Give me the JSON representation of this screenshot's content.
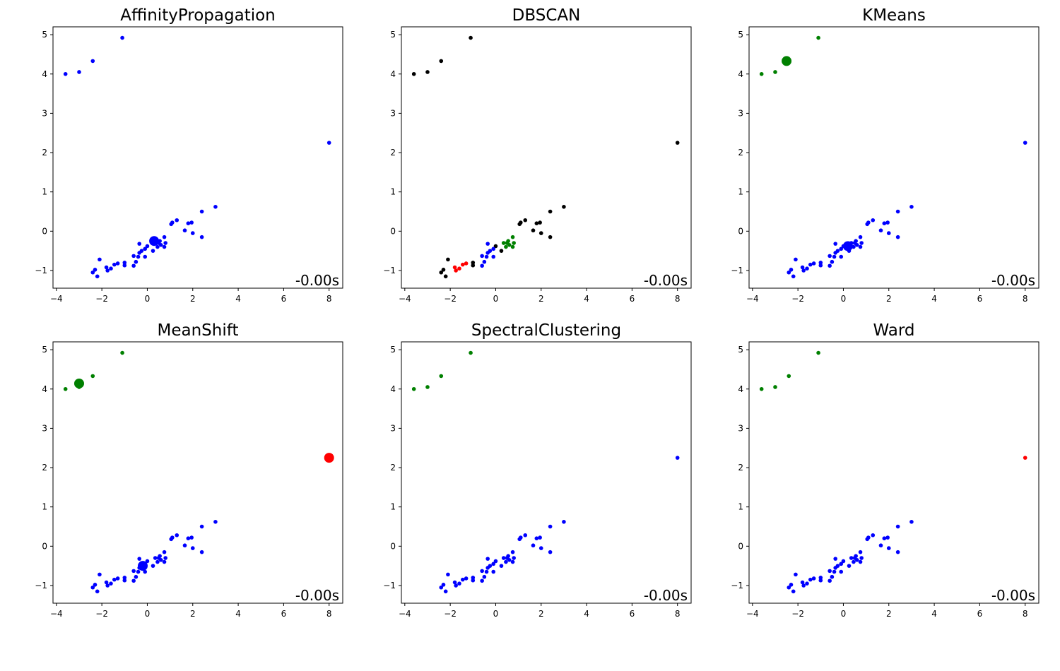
{
  "colors": {
    "blue": "#0000ff",
    "green": "#008000",
    "red": "#ff0000",
    "black": "#000000"
  },
  "base_points": [
    [
      -3.6,
      4.0
    ],
    [
      -3.0,
      4.05
    ],
    [
      -2.4,
      4.33
    ],
    [
      -1.1,
      4.92
    ],
    [
      8.0,
      2.25
    ],
    [
      3.0,
      0.62
    ],
    [
      2.4,
      0.5
    ],
    [
      1.3,
      0.28
    ],
    [
      1.05,
      0.18
    ],
    [
      1.1,
      0.22
    ],
    [
      1.8,
      0.2
    ],
    [
      1.95,
      0.22
    ],
    [
      1.65,
      0.02
    ],
    [
      2.0,
      -0.05
    ],
    [
      2.4,
      -0.15
    ],
    [
      0.75,
      -0.15
    ],
    [
      0.55,
      -0.25
    ],
    [
      0.5,
      -0.3
    ],
    [
      0.35,
      -0.3
    ],
    [
      0.6,
      -0.35
    ],
    [
      0.8,
      -0.3
    ],
    [
      0.75,
      -0.4
    ],
    [
      0.45,
      -0.4
    ],
    [
      0.25,
      -0.5
    ],
    [
      0.0,
      -0.38
    ],
    [
      -0.1,
      -0.45
    ],
    [
      -0.35,
      -0.32
    ],
    [
      -0.25,
      -0.5
    ],
    [
      -0.35,
      -0.55
    ],
    [
      -0.1,
      -0.65
    ],
    [
      -0.4,
      -0.65
    ],
    [
      -0.6,
      -0.63
    ],
    [
      -0.5,
      -0.78
    ],
    [
      -0.6,
      -0.88
    ],
    [
      -1.0,
      -0.8
    ],
    [
      -1.0,
      -0.87
    ],
    [
      -1.3,
      -0.82
    ],
    [
      -1.45,
      -0.85
    ],
    [
      -1.6,
      -0.95
    ],
    [
      -1.75,
      -1.0
    ],
    [
      -1.8,
      -0.92
    ],
    [
      -2.1,
      -0.72
    ],
    [
      -2.4,
      -1.05
    ],
    [
      -2.3,
      -0.98
    ],
    [
      -2.2,
      -1.15
    ]
  ],
  "chart_data": [
    {
      "type": "scatter",
      "title": "AffinityPropagation",
      "annotation": "-0.00s",
      "xticks": [
        -4,
        -2,
        0,
        2,
        4,
        6,
        8
      ],
      "yticks": [
        -1,
        0,
        1,
        2,
        3,
        4,
        5
      ],
      "xlim": [
        -4.15,
        8.6
      ],
      "ylim": [
        -1.45,
        5.2
      ],
      "labels": [
        "blue",
        "blue",
        "blue",
        "blue",
        "blue",
        "blue",
        "blue",
        "blue",
        "blue",
        "blue",
        "blue",
        "blue",
        "blue",
        "blue",
        "blue",
        "blue",
        "blue",
        "blue",
        "blue",
        "blue",
        "blue",
        "blue",
        "blue",
        "blue",
        "blue",
        "blue",
        "blue",
        "blue",
        "blue",
        "blue",
        "blue",
        "blue",
        "blue",
        "blue",
        "blue",
        "blue",
        "blue",
        "blue",
        "blue",
        "blue",
        "blue",
        "blue",
        "blue",
        "blue",
        "blue"
      ],
      "centers": [
        {
          "x": 0.3,
          "y": -0.25,
          "color": "blue"
        }
      ]
    },
    {
      "type": "scatter",
      "title": "DBSCAN",
      "annotation": "-0.00s",
      "xticks": [
        -4,
        -2,
        0,
        2,
        4,
        6,
        8
      ],
      "yticks": [
        -1,
        0,
        1,
        2,
        3,
        4,
        5
      ],
      "xlim": [
        -4.15,
        8.6
      ],
      "ylim": [
        -1.45,
        5.2
      ],
      "labels": [
        "black",
        "black",
        "black",
        "black",
        "black",
        "black",
        "black",
        "black",
        "black",
        "black",
        "black",
        "black",
        "black",
        "black",
        "black",
        "green",
        "green",
        "green",
        "green",
        "green",
        "green",
        "green",
        "green",
        "black",
        "black",
        "blue",
        "blue",
        "blue",
        "blue",
        "blue",
        "blue",
        "blue",
        "blue",
        "blue",
        "black",
        "black",
        "red",
        "red",
        "red",
        "red",
        "red",
        "black",
        "black",
        "black",
        "black"
      ],
      "centers": []
    },
    {
      "type": "scatter",
      "title": "KMeans",
      "annotation": "-0.00s",
      "xticks": [
        -4,
        -2,
        0,
        2,
        4,
        6,
        8
      ],
      "yticks": [
        -1,
        0,
        1,
        2,
        3,
        4,
        5
      ],
      "xlim": [
        -4.15,
        8.6
      ],
      "ylim": [
        -1.45,
        5.2
      ],
      "labels": [
        "green",
        "green",
        "green",
        "green",
        "blue",
        "blue",
        "blue",
        "blue",
        "blue",
        "blue",
        "blue",
        "blue",
        "blue",
        "blue",
        "blue",
        "blue",
        "blue",
        "blue",
        "blue",
        "blue",
        "blue",
        "blue",
        "blue",
        "blue",
        "blue",
        "blue",
        "blue",
        "blue",
        "blue",
        "blue",
        "blue",
        "blue",
        "blue",
        "blue",
        "blue",
        "blue",
        "blue",
        "blue",
        "blue",
        "blue",
        "blue",
        "blue",
        "blue",
        "blue",
        "blue"
      ],
      "centers": [
        {
          "x": -2.5,
          "y": 4.33,
          "color": "green"
        },
        {
          "x": 0.2,
          "y": -0.38,
          "color": "blue"
        }
      ]
    },
    {
      "type": "scatter",
      "title": "MeanShift",
      "annotation": "-0.00s",
      "xticks": [
        -4,
        -2,
        0,
        2,
        4,
        6,
        8
      ],
      "yticks": [
        -1,
        0,
        1,
        2,
        3,
        4,
        5
      ],
      "xlim": [
        -4.15,
        8.6
      ],
      "ylim": [
        -1.45,
        5.2
      ],
      "labels": [
        "green",
        "green",
        "green",
        "green",
        "red",
        "blue",
        "blue",
        "blue",
        "blue",
        "blue",
        "blue",
        "blue",
        "blue",
        "blue",
        "blue",
        "blue",
        "blue",
        "blue",
        "blue",
        "blue",
        "blue",
        "blue",
        "blue",
        "blue",
        "blue",
        "blue",
        "blue",
        "blue",
        "blue",
        "blue",
        "blue",
        "blue",
        "blue",
        "blue",
        "blue",
        "blue",
        "blue",
        "blue",
        "blue",
        "blue",
        "blue",
        "blue",
        "blue",
        "blue",
        "blue"
      ],
      "centers": [
        {
          "x": -3.0,
          "y": 4.14,
          "color": "green"
        },
        {
          "x": 8.0,
          "y": 2.25,
          "color": "red"
        },
        {
          "x": -0.2,
          "y": -0.5,
          "color": "blue"
        }
      ]
    },
    {
      "type": "scatter",
      "title": "SpectralClustering",
      "annotation": "-0.00s",
      "xticks": [
        -4,
        -2,
        0,
        2,
        4,
        6,
        8
      ],
      "yticks": [
        -1,
        0,
        1,
        2,
        3,
        4,
        5
      ],
      "xlim": [
        -4.15,
        8.6
      ],
      "ylim": [
        -1.45,
        5.2
      ],
      "labels": [
        "green",
        "green",
        "green",
        "green",
        "blue",
        "blue",
        "blue",
        "blue",
        "blue",
        "blue",
        "blue",
        "blue",
        "blue",
        "blue",
        "blue",
        "blue",
        "blue",
        "blue",
        "blue",
        "blue",
        "blue",
        "blue",
        "blue",
        "blue",
        "blue",
        "blue",
        "blue",
        "blue",
        "blue",
        "blue",
        "blue",
        "blue",
        "blue",
        "blue",
        "blue",
        "blue",
        "blue",
        "blue",
        "blue",
        "blue",
        "blue",
        "blue",
        "blue",
        "blue",
        "blue"
      ],
      "centers": []
    },
    {
      "type": "scatter",
      "title": "Ward",
      "annotation": "-0.00s",
      "xticks": [
        -4,
        -2,
        0,
        2,
        4,
        6,
        8
      ],
      "yticks": [
        -1,
        0,
        1,
        2,
        3,
        4,
        5
      ],
      "xlim": [
        -4.15,
        8.6
      ],
      "ylim": [
        -1.45,
        5.2
      ],
      "labels": [
        "green",
        "green",
        "green",
        "green",
        "red",
        "blue",
        "blue",
        "blue",
        "blue",
        "blue",
        "blue",
        "blue",
        "blue",
        "blue",
        "blue",
        "blue",
        "blue",
        "blue",
        "blue",
        "blue",
        "blue",
        "blue",
        "blue",
        "blue",
        "blue",
        "blue",
        "blue",
        "blue",
        "blue",
        "blue",
        "blue",
        "blue",
        "blue",
        "blue",
        "blue",
        "blue",
        "blue",
        "blue",
        "blue",
        "blue",
        "blue",
        "blue",
        "blue",
        "blue",
        "blue"
      ],
      "centers": []
    }
  ]
}
